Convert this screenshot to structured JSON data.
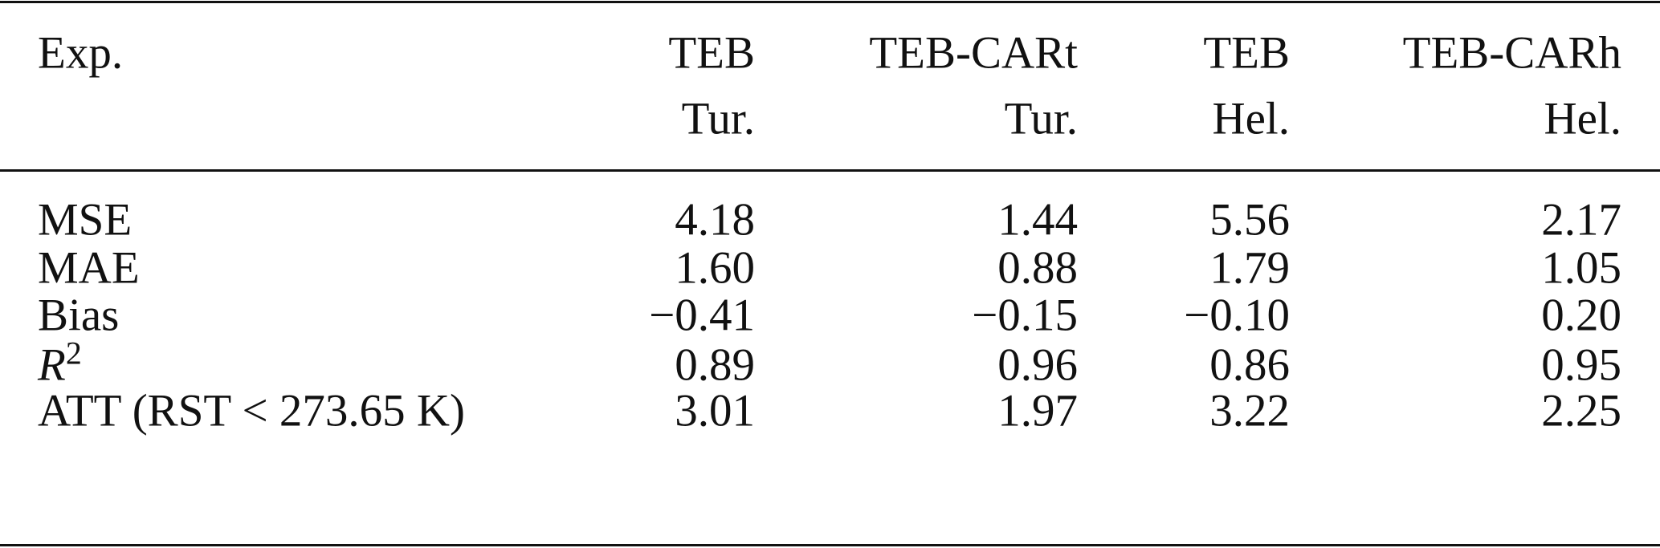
{
  "table": {
    "header": {
      "label": "Exp.",
      "columns": [
        {
          "line1": "TEB",
          "line2": "Tur."
        },
        {
          "line1": "TEB-CARt",
          "line2": "Tur."
        },
        {
          "line1": "TEB",
          "line2": "Hel."
        },
        {
          "line1": "TEB-CARh",
          "line2": "Hel."
        }
      ]
    },
    "rows": [
      {
        "label": "MSE",
        "values": [
          "4.18",
          "1.44",
          "5.56",
          "2.17"
        ]
      },
      {
        "label": "MAE",
        "values": [
          "1.60",
          "0.88",
          "1.79",
          "1.05"
        ]
      },
      {
        "label": "Bias",
        "values": [
          "−0.41",
          "−0.15",
          "−0.10",
          "0.20"
        ]
      },
      {
        "label": "R",
        "label_sup": "2",
        "values": [
          "0.89",
          "0.96",
          "0.86",
          "0.95"
        ]
      },
      {
        "label": "ATT (RST < 273.65 K)",
        "values": [
          "3.01",
          "1.97",
          "3.22",
          "2.25"
        ]
      }
    ]
  }
}
